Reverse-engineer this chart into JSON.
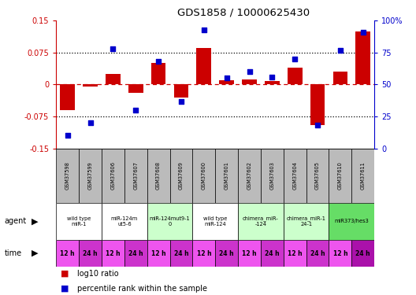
{
  "title": "GDS1858 / 10000625430",
  "samples": [
    "GSM37598",
    "GSM37599",
    "GSM37606",
    "GSM37607",
    "GSM37608",
    "GSM37609",
    "GSM37600",
    "GSM37601",
    "GSM37602",
    "GSM37603",
    "GSM37604",
    "GSM37605",
    "GSM37610",
    "GSM37611"
  ],
  "log10_ratio": [
    -0.06,
    -0.005,
    0.025,
    -0.02,
    0.05,
    -0.03,
    0.085,
    0.01,
    0.012,
    0.008,
    0.04,
    -0.095,
    0.03,
    0.125
  ],
  "percentile_rank": [
    10,
    20,
    78,
    30,
    68,
    37,
    93,
    55,
    60,
    56,
    70,
    18,
    77,
    91
  ],
  "ylim": [
    -0.15,
    0.15
  ],
  "yticks_left": [
    -0.15,
    -0.075,
    0,
    0.075,
    0.15
  ],
  "yticks_right": [
    0,
    25,
    50,
    75,
    100
  ],
  "bar_color": "#cc0000",
  "dot_color": "#0000cc",
  "agent_groups": [
    {
      "label": "wild type\nmiR-1",
      "start": 0,
      "end": 2,
      "color": "#ffffff"
    },
    {
      "label": "miR-124m\nut5-6",
      "start": 2,
      "end": 4,
      "color": "#ffffff"
    },
    {
      "label": "miR-124mut9-1\n0",
      "start": 4,
      "end": 6,
      "color": "#ccffcc"
    },
    {
      "label": "wild type\nmiR-124",
      "start": 6,
      "end": 8,
      "color": "#ffffff"
    },
    {
      "label": "chimera_miR-\n-124",
      "start": 8,
      "end": 10,
      "color": "#ccffcc"
    },
    {
      "label": "chimera_miR-1\n24-1",
      "start": 10,
      "end": 12,
      "color": "#ccffcc"
    },
    {
      "label": "miR373/hes3",
      "start": 12,
      "end": 14,
      "color": "#66dd66"
    }
  ],
  "time_labels": [
    "12 h",
    "24 h",
    "12 h",
    "24 h",
    "12 h",
    "24 h",
    "12 h",
    "24 h",
    "12 h",
    "24 h",
    "12 h",
    "24 h",
    "12 h",
    "24 h"
  ],
  "time_colors": [
    "#ee55ee",
    "#cc33cc",
    "#ee55ee",
    "#cc33cc",
    "#ee55ee",
    "#cc33cc",
    "#ee55ee",
    "#cc33cc",
    "#ee55ee",
    "#cc33cc",
    "#ee55ee",
    "#cc33cc",
    "#ee55ee",
    "#aa11aa"
  ],
  "xlabel_color": "#cc0000",
  "ylabel_right_color": "#0000cc",
  "sample_row_color": "#bbbbbb",
  "fig_width": 5.28,
  "fig_height": 3.75,
  "dpi": 100
}
